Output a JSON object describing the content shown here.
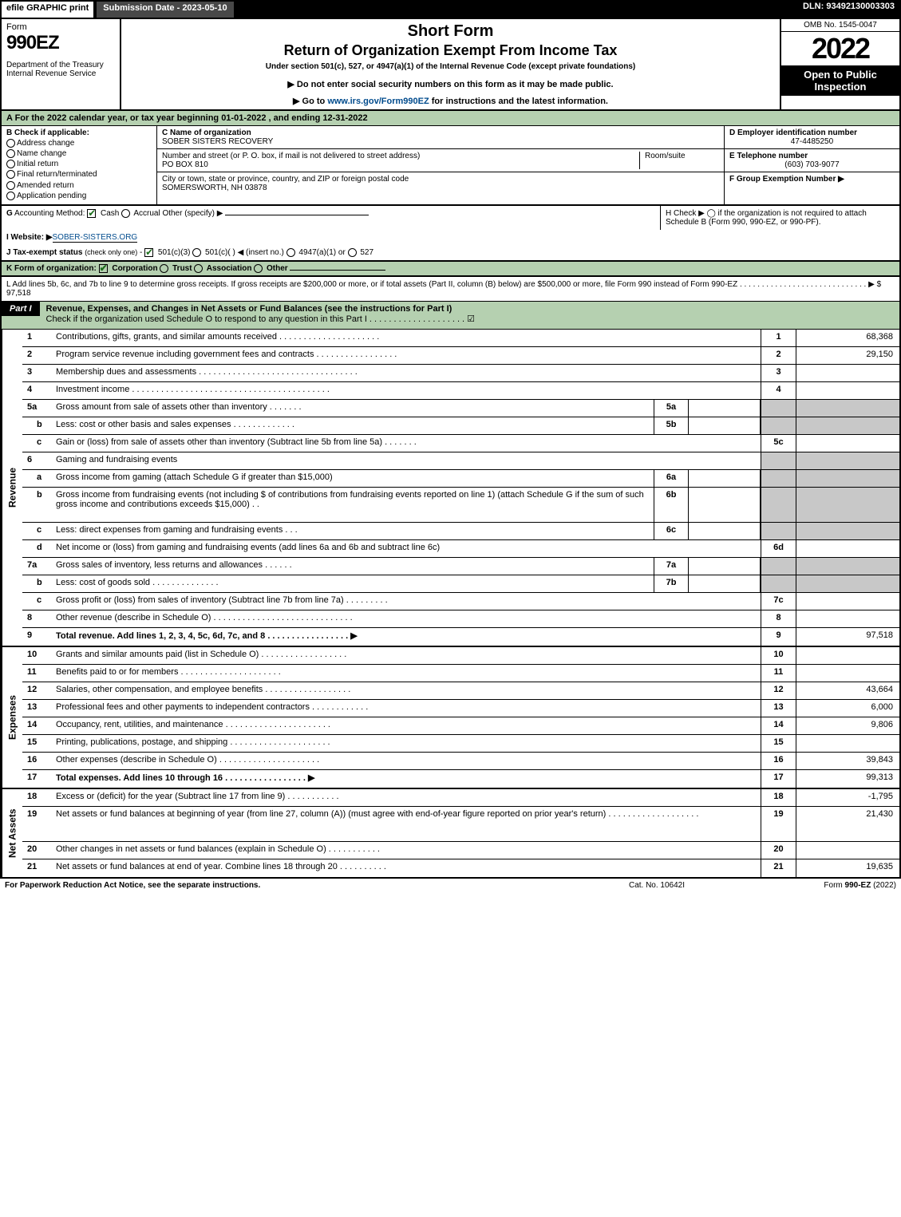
{
  "top": {
    "efile": "efile GRAPHIC print",
    "subdate": "Submission Date - 2023-05-10",
    "dln": "DLN: 93492130003303"
  },
  "header": {
    "form": "Form",
    "formno": "990EZ",
    "dept": "Department of the Treasury\nInternal Revenue Service",
    "t1": "Short Form",
    "t2": "Return of Organization Exempt From Income Tax",
    "t3": "Under section 501(c), 527, or 4947(a)(1) of the Internal Revenue Code (except private foundations)",
    "t4a": "▶ Do not enter social security numbers on this form as it may be made public.",
    "t4b": "▶ Go to www.irs.gov/Form990EZ for instructions and the latest information.",
    "link": "www.irs.gov/Form990EZ",
    "omb": "OMB No. 1545-0047",
    "year": "2022",
    "insp": "Open to Public Inspection"
  },
  "A": "A  For the 2022 calendar year, or tax year beginning 01-01-2022 , and ending 12-31-2022",
  "B": {
    "title": "B  Check if applicable:",
    "opts": [
      "Address change",
      "Name change",
      "Initial return",
      "Final return/terminated",
      "Amended return",
      "Application pending"
    ]
  },
  "C": {
    "nameLbl": "C Name of organization",
    "name": "SOBER SISTERS RECOVERY",
    "addrLbl": "Number and street (or P. O. box, if mail is not delivered to street address)",
    "roomLbl": "Room/suite",
    "addr": "PO BOX 810",
    "cityLbl": "City or town, state or province, country, and ZIP or foreign postal code",
    "city": "SOMERSWORTH, NH  03878"
  },
  "D": {
    "lbl": "D Employer identification number",
    "val": "47-4485250"
  },
  "E": {
    "lbl": "E Telephone number",
    "val": "(603) 703-9077"
  },
  "F": {
    "lbl": "F Group Exemption Number  ▶",
    "val": ""
  },
  "G": "G Accounting Method:   ☑ Cash  ◯ Accrual   Other (specify) ▶",
  "H": "H   Check ▶  ◯  if the organization is not required to attach Schedule B (Form 990, 990-EZ, or 990-PF).",
  "I": {
    "lbl": "I Website: ▶",
    "val": "SOBER-SISTERS.ORG"
  },
  "J": "J Tax-exempt status (check only one) - ☑ 501(c)(3) ◯ 501(c)(  ) ◀ (insert no.) ◯ 4947(a)(1) or ◯ 527",
  "K": "K Form of organization:   ☑ Corporation   ◯ Trust   ◯ Association   ◯ Other",
  "L": "L Add lines 5b, 6c, and 7b to line 9 to determine gross receipts. If gross receipts are $200,000 or more, or if total assets (Part II, column (B) below) are $500,000 or more, file Form 990 instead of Form 990-EZ . . . . . . . . . . . . . . . . . . . . . . . . . . . . .  ▶ $ 97,518",
  "part1": {
    "title": "Part I",
    "text": "Revenue, Expenses, and Changes in Net Assets or Fund Balances (see the instructions for Part I)",
    "sub": "Check if the organization used Schedule O to respond to any question in this Part I . . . . . . . . . . . . . . . . . . . . ☑"
  },
  "rev": [
    {
      "n": "1",
      "d": "Contributions, gifts, grants, and similar amounts received . . . . . . . . . . . . . . . . . . . . .",
      "c": "1",
      "v": "68,368"
    },
    {
      "n": "2",
      "d": "Program service revenue including government fees and contracts . . . . . . . . . . . . . . . . .",
      "c": "2",
      "v": "29,150"
    },
    {
      "n": "3",
      "d": "Membership dues and assessments . . . . . . . . . . . . . . . . . . . . . . . . . . . . . . . . .",
      "c": "3",
      "v": ""
    },
    {
      "n": "4",
      "d": "Investment income . . . . . . . . . . . . . . . . . . . . . . . . . . . . . . . . . . . . . . . . .",
      "c": "4",
      "v": ""
    },
    {
      "n": "5a",
      "d": "Gross amount from sale of assets other than inventory . . . . . . .",
      "sc": "5a",
      "sv": "",
      "grey": true
    },
    {
      "n": "b",
      "d": "Less: cost or other basis and sales expenses . . . . . . . . . . . . .",
      "sc": "5b",
      "sv": "",
      "grey": true
    },
    {
      "n": "c",
      "d": "Gain or (loss) from sale of assets other than inventory (Subtract line 5b from line 5a) . . . . . . .",
      "c": "5c",
      "v": ""
    },
    {
      "n": "6",
      "d": "Gaming and fundraising events",
      "grey": true,
      "noc": true
    },
    {
      "n": "a",
      "d": "Gross income from gaming (attach Schedule G if greater than $15,000)",
      "sc": "6a",
      "sv": "",
      "grey": true
    },
    {
      "n": "b",
      "d": "Gross income from fundraising events (not including $            of contributions from fundraising events reported on line 1) (attach Schedule G if the sum of such gross income and contributions exceeds $15,000)   .  .",
      "sc": "6b",
      "sv": "",
      "grey": true,
      "tall": true
    },
    {
      "n": "c",
      "d": "Less: direct expenses from gaming and fundraising events   .  .  .",
      "sc": "6c",
      "sv": "",
      "grey": true
    },
    {
      "n": "d",
      "d": "Net income or (loss) from gaming and fundraising events (add lines 6a and 6b and subtract line 6c)",
      "c": "6d",
      "v": ""
    },
    {
      "n": "7a",
      "d": "Gross sales of inventory, less returns and allowances . . . . . .",
      "sc": "7a",
      "sv": "",
      "grey": true
    },
    {
      "n": "b",
      "d": "Less: cost of goods sold       .   .   .   .   .   .   .   .   .   .   .   .   .   .",
      "sc": "7b",
      "sv": "",
      "grey": true
    },
    {
      "n": "c",
      "d": "Gross profit or (loss) from sales of inventory (Subtract line 7b from line 7a) . . . . . . . . .",
      "c": "7c",
      "v": ""
    },
    {
      "n": "8",
      "d": "Other revenue (describe in Schedule O) . . . . . . . . . . . . . . . . . . . . . . . . . . . . .",
      "c": "8",
      "v": ""
    },
    {
      "n": "9",
      "d": "Total revenue. Add lines 1, 2, 3, 4, 5c, 6d, 7c, and 8  .  .  .  .  .  .  .  .  .  .  .  .  .  .  .  .  .  ▶",
      "c": "9",
      "v": "97,518",
      "bold": true
    }
  ],
  "exp": [
    {
      "n": "10",
      "d": "Grants and similar amounts paid (list in Schedule O) .  .  .  .  .  .  .  .  .  .  .  .  .  .  .  .  .  .",
      "c": "10",
      "v": ""
    },
    {
      "n": "11",
      "d": "Benefits paid to or for members     .   .   .   .   .   .   .   .   .   .   .   .   .   .   .   .   .   .   .   .   .",
      "c": "11",
      "v": ""
    },
    {
      "n": "12",
      "d": "Salaries, other compensation, and employee benefits .  .  .  .  .  .  .  .  .  .  .  .  .  .  .  .  .  .",
      "c": "12",
      "v": "43,664"
    },
    {
      "n": "13",
      "d": "Professional fees and other payments to independent contractors .  .  .  .  .  .  .  .  .  .  .  .",
      "c": "13",
      "v": "6,000"
    },
    {
      "n": "14",
      "d": "Occupancy, rent, utilities, and maintenance .  .  .  .  .  .  .  .  .  .  .  .  .  .  .  .  .  .  .  .  .  .",
      "c": "14",
      "v": "9,806"
    },
    {
      "n": "15",
      "d": "Printing, publications, postage, and shipping .  .  .  .  .  .  .  .  .  .  .  .  .  .  .  .  .  .  .  .  .",
      "c": "15",
      "v": ""
    },
    {
      "n": "16",
      "d": "Other expenses (describe in Schedule O)    .  .  .  .  .  .  .  .  .  .  .  .  .  .  .  .  .  .  .  .  .",
      "c": "16",
      "v": "39,843"
    },
    {
      "n": "17",
      "d": "Total expenses. Add lines 10 through 16    .   .   .   .   .   .   .   .   .   .   .   .   .   .   .   .   .    ▶",
      "c": "17",
      "v": "99,313",
      "bold": true
    }
  ],
  "na": [
    {
      "n": "18",
      "d": "Excess or (deficit) for the year (Subtract line 17 from line 9)       .   .   .   .   .   .   .   .   .   .   .",
      "c": "18",
      "v": "-1,795"
    },
    {
      "n": "19",
      "d": "Net assets or fund balances at beginning of year (from line 27, column (A)) (must agree with end-of-year figure reported on prior year's return) .  .  .  .  .  .  .  .  .  .  .  .  .  .  .  .  .  .  .",
      "c": "19",
      "v": "21,430",
      "tall": true
    },
    {
      "n": "20",
      "d": "Other changes in net assets or fund balances (explain in Schedule O) .  .  .  .  .  .  .  .  .  .  .",
      "c": "20",
      "v": ""
    },
    {
      "n": "21",
      "d": "Net assets or fund balances at end of year. Combine lines 18 through 20 .  .  .  .  .  .  .  .  .  .",
      "c": "21",
      "v": "19,635"
    }
  ],
  "footer": {
    "l": "For Paperwork Reduction Act Notice, see the separate instructions.",
    "m": "Cat. No. 10642I",
    "r": "Form 990-EZ (2022)"
  },
  "sidelabels": {
    "rev": "Revenue",
    "exp": "Expenses",
    "na": "Net Assets"
  },
  "colors": {
    "green": "#b5d0b0",
    "grey": "#c8c8c8",
    "link": "#004b8d"
  }
}
